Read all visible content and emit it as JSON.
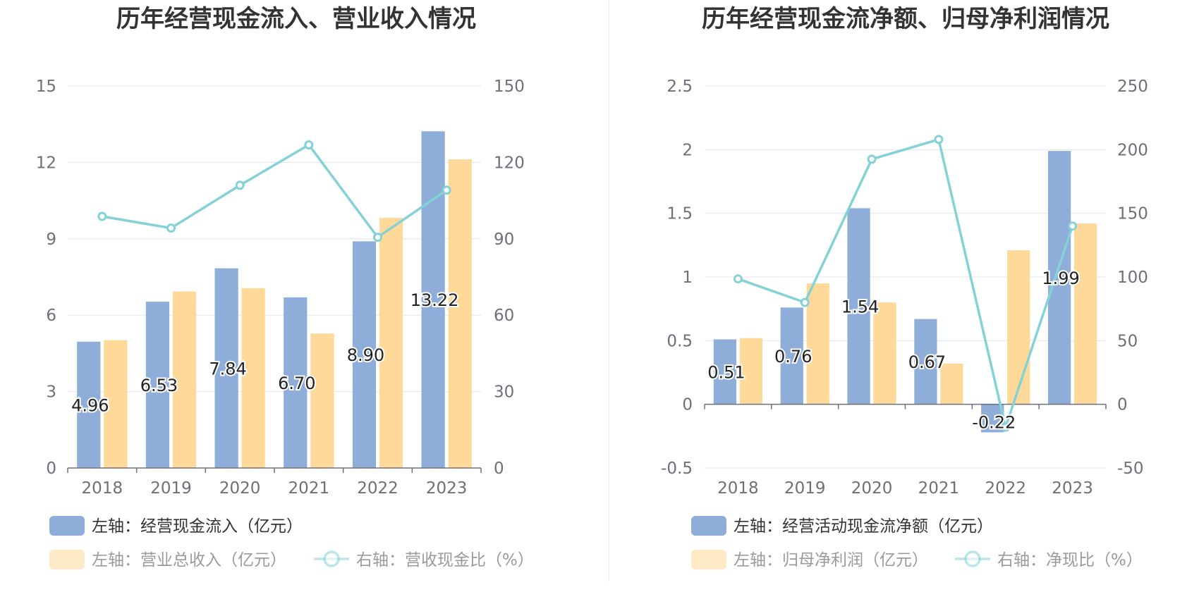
{
  "chart_data": [
    {
      "type": "bar",
      "title": "历年经营现金流入、营业收入情况",
      "categories": [
        "2018",
        "2019",
        "2020",
        "2021",
        "2022",
        "2023"
      ],
      "y_left": {
        "ylim": [
          0,
          15
        ],
        "ticks": [
          "0",
          "3",
          "6",
          "9",
          "12",
          "15"
        ]
      },
      "y_right": {
        "ylim": [
          0,
          150
        ],
        "ticks": [
          "0",
          "30",
          "60",
          "90",
          "120",
          "150"
        ]
      },
      "grid": true,
      "legend_position": "bottom",
      "series": [
        {
          "name": "左轴：经营现金流入（亿元）",
          "type": "bar",
          "axis": "left",
          "color": "#8eadd9",
          "values": [
            4.96,
            6.53,
            7.84,
            6.7,
            8.9,
            13.22
          ],
          "labels": [
            "4.96",
            "6.53",
            "7.84",
            "6.70",
            "8.90",
            "13.22"
          ]
        },
        {
          "name": "左轴：营业总收入（亿元）",
          "type": "bar",
          "axis": "left",
          "color": "#ffd99a",
          "values": [
            5.02,
            6.93,
            7.06,
            5.28,
            9.82,
            12.12
          ]
        },
        {
          "name": "右轴：营收现金比（%）",
          "type": "line",
          "axis": "right",
          "color": "#85d2d6",
          "values": [
            98.8,
            94.2,
            111.0,
            126.9,
            90.6,
            109.1
          ]
        }
      ]
    },
    {
      "type": "bar",
      "title": "历年经营现金流净额、归母净利润情况",
      "categories": [
        "2018",
        "2019",
        "2020",
        "2021",
        "2022",
        "2023"
      ],
      "y_left": {
        "ylim": [
          -0.5,
          2.5
        ],
        "ticks": [
          "-0.5",
          "0",
          "0.5",
          "1",
          "1.5",
          "2",
          "2.5"
        ]
      },
      "y_right": {
        "ylim": [
          -50,
          250
        ],
        "ticks": [
          "-50",
          "0",
          "50",
          "100",
          "150",
          "200",
          "250"
        ]
      },
      "grid": true,
      "legend_position": "bottom",
      "series": [
        {
          "name": "左轴：经营活动现金流净额（亿元）",
          "type": "bar",
          "axis": "left",
          "color": "#8eadd9",
          "values": [
            0.51,
            0.76,
            1.54,
            0.67,
            -0.22,
            1.99
          ],
          "labels": [
            "0.51",
            "0.76",
            "1.54",
            "0.67",
            "-0.22",
            "1.99"
          ]
        },
        {
          "name": "左轴：归母净利润（亿元）",
          "type": "bar",
          "axis": "left",
          "color": "#ffd99a",
          "values": [
            0.52,
            0.95,
            0.8,
            0.32,
            1.21,
            1.42
          ]
        },
        {
          "name": "右轴：净现比（%）",
          "type": "line",
          "axis": "right",
          "color": "#85d2d6",
          "values": [
            98.5,
            80.0,
            192.5,
            208.0,
            -18.0,
            140.0
          ]
        }
      ]
    }
  ]
}
